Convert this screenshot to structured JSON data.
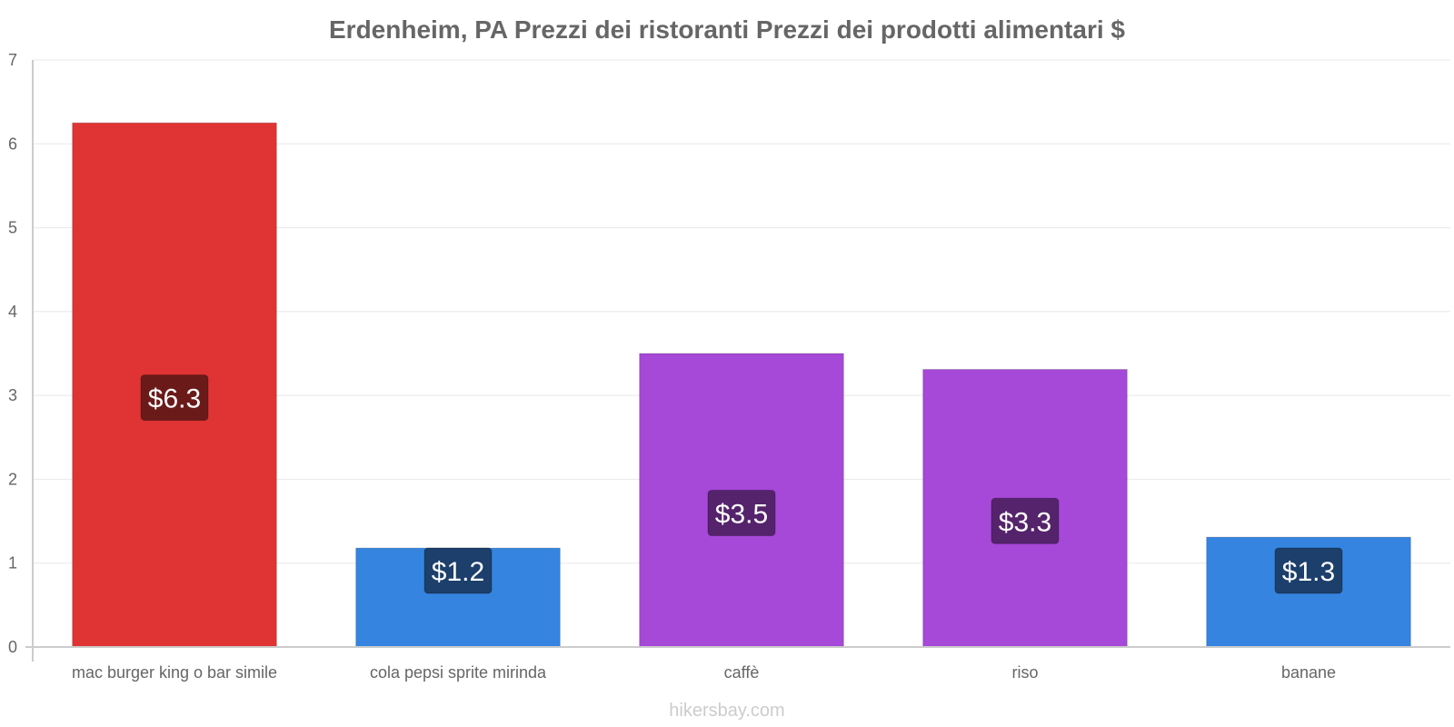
{
  "chart_data": {
    "type": "bar",
    "title": "Erdenheim, PA Prezzi dei ristoranti Prezzi dei prodotti alimentari $",
    "xlabel": "",
    "ylabel": "",
    "ylim": [
      0,
      7
    ],
    "yticks": [
      "0",
      "1",
      "2",
      "3",
      "4",
      "5",
      "6",
      "7"
    ],
    "grid": true,
    "categories": [
      "mac burger king o bar simile",
      "cola pepsi sprite mirinda",
      "caffè",
      "riso",
      "banane"
    ],
    "values": [
      6.25,
      1.18,
      3.5,
      3.31,
      1.31
    ],
    "labels": [
      "$6.3",
      "$1.2",
      "$3.5",
      "$3.3",
      "$1.3"
    ],
    "colors": [
      "#e03434",
      "#3584e0",
      "#a648d8",
      "#a648d8",
      "#3584e0"
    ],
    "label_bg_colors": [
      "#6b1a1a",
      "#1c3f6b",
      "#55236c",
      "#55236c",
      "#1c3f6b"
    ]
  },
  "watermark": "hikersbay.com"
}
